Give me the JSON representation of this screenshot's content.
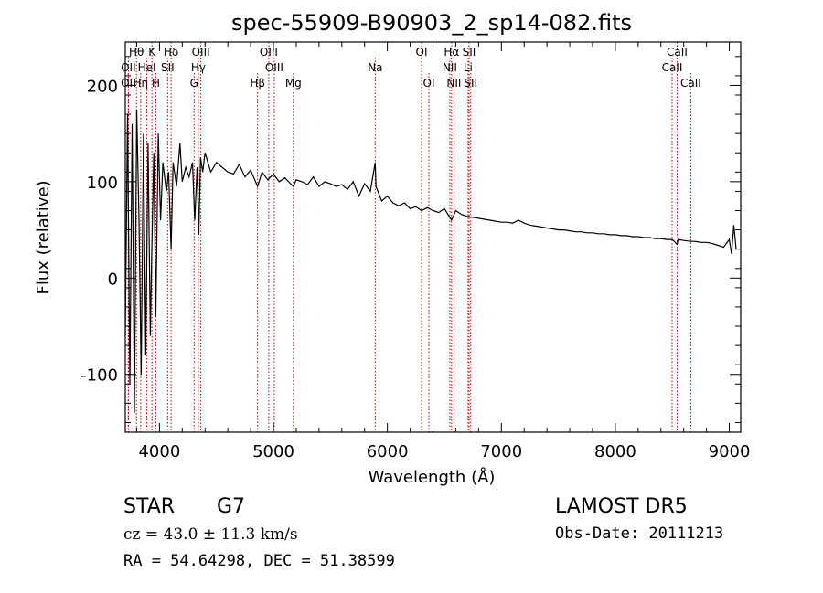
{
  "chart_data": {
    "type": "line",
    "title": "spec-55909-B90903_2_sp14-082.fits",
    "xlabel": "Wavelength (Å)",
    "ylabel": "Flux (relative)",
    "xlim": [
      3700,
      9100
    ],
    "ylim": [
      -160,
      245
    ],
    "x_ticks": [
      4000,
      5000,
      6000,
      7000,
      8000,
      9000
    ],
    "y_ticks": [
      -100,
      0,
      100,
      200
    ],
    "grid": false,
    "legend": "none",
    "line_color": "#000000",
    "marker_color": "#c00000",
    "spectrum": {
      "x": [
        3700,
        3720,
        3740,
        3760,
        3780,
        3800,
        3820,
        3840,
        3860,
        3880,
        3900,
        3920,
        3933,
        3950,
        3968,
        3990,
        4010,
        4030,
        4060,
        4080,
        4102,
        4120,
        4150,
        4180,
        4200,
        4230,
        4260,
        4290,
        4310,
        4330,
        4345,
        4360,
        4380,
        4400,
        4450,
        4500,
        4550,
        4600,
        4650,
        4700,
        4750,
        4800,
        4861,
        4900,
        4950,
        5000,
        5050,
        5100,
        5150,
        5175,
        5200,
        5250,
        5300,
        5350,
        5400,
        5450,
        5500,
        5550,
        5600,
        5650,
        5700,
        5750,
        5800,
        5850,
        5893,
        5900,
        5950,
        6000,
        6050,
        6100,
        6150,
        6200,
        6250,
        6300,
        6350,
        6400,
        6450,
        6500,
        6563,
        6600,
        6650,
        6700,
        6750,
        6800,
        6850,
        6900,
        6950,
        7000,
        7050,
        7100,
        7150,
        7200,
        7250,
        7300,
        7350,
        7400,
        7450,
        7500,
        7550,
        7600,
        7650,
        7700,
        7750,
        7800,
        7850,
        7900,
        7950,
        8000,
        8050,
        8100,
        8150,
        8200,
        8250,
        8300,
        8350,
        8400,
        8450,
        8500,
        8542,
        8550,
        8600,
        8662,
        8700,
        8750,
        8800,
        8850,
        8900,
        8950,
        9000,
        9020,
        9040,
        9060
      ],
      "y": [
        -60,
        170,
        -110,
        160,
        -140,
        175,
        60,
        -100,
        150,
        -80,
        140,
        -60,
        30,
        130,
        -40,
        150,
        60,
        120,
        90,
        110,
        30,
        120,
        95,
        140,
        100,
        115,
        105,
        120,
        60,
        115,
        45,
        125,
        110,
        130,
        110,
        120,
        115,
        110,
        108,
        118,
        105,
        112,
        95,
        110,
        102,
        108,
        100,
        104,
        98,
        95,
        102,
        100,
        97,
        105,
        95,
        100,
        98,
        95,
        97,
        92,
        100,
        85,
        98,
        90,
        120,
        95,
        80,
        85,
        78,
        75,
        78,
        72,
        74,
        70,
        73,
        70,
        68,
        72,
        60,
        70,
        66,
        64,
        63,
        62,
        61,
        60,
        59,
        58,
        58,
        57,
        60,
        57,
        55,
        54,
        53,
        52,
        51,
        50,
        50,
        49,
        48,
        48,
        47,
        47,
        46,
        46,
        45,
        45,
        44,
        44,
        43,
        43,
        42,
        42,
        41,
        41,
        40,
        40,
        35,
        40,
        39,
        38,
        38,
        37,
        37,
        36,
        34,
        32,
        40,
        25,
        55,
        30
      ]
    },
    "line_markers": [
      {
        "label": "Hθ",
        "x": 3798,
        "row": 1
      },
      {
        "label": "OII",
        "x": 3727,
        "row": 2
      },
      {
        "label": "OII",
        "x": 3727,
        "row": 3
      },
      {
        "label": "Hη",
        "x": 3835,
        "row": 3
      },
      {
        "label": "K",
        "x": 3934,
        "row": 1
      },
      {
        "label": "HeI",
        "x": 3889,
        "row": 2
      },
      {
        "label": "H",
        "x": 3969,
        "row": 3
      },
      {
        "label": "Hδ",
        "x": 4102,
        "row": 1
      },
      {
        "label": "SII",
        "x": 4072,
        "row": 2
      },
      {
        "label": "OIII",
        "x": 4363,
        "row": 1
      },
      {
        "label": "Hγ",
        "x": 4341,
        "row": 2
      },
      {
        "label": "G",
        "x": 4304,
        "row": 3
      },
      {
        "label": "OIII",
        "x": 4959,
        "row": 1
      },
      {
        "label": "OIII",
        "x": 5007,
        "row": 2
      },
      {
        "label": "Hβ",
        "x": 4861,
        "row": 3
      },
      {
        "label": "Mg",
        "x": 5175,
        "row": 3
      },
      {
        "label": "Na",
        "x": 5893,
        "row": 2
      },
      {
        "label": "OI",
        "x": 6300,
        "row": 1
      },
      {
        "label": "OI",
        "x": 6364,
        "row": 3
      },
      {
        "label": "Hα",
        "x": 6563,
        "row": 1
      },
      {
        "label": "NII",
        "x": 6548,
        "row": 2
      },
      {
        "label": "NII",
        "x": 6584,
        "row": 3
      },
      {
        "label": "SII",
        "x": 6717,
        "row": 1
      },
      {
        "label": "Li",
        "x": 6708,
        "row": 2
      },
      {
        "label": "SII",
        "x": 6731,
        "row": 3
      },
      {
        "label": "CaII",
        "x": 8542,
        "row": 1
      },
      {
        "label": "CaII",
        "x": 8498,
        "row": 2
      },
      {
        "label": "CaII",
        "x": 8662,
        "row": 3
      }
    ]
  },
  "info": {
    "class": "STAR",
    "subclass": "G7",
    "survey": "LAMOST DR5",
    "cz": "cz = 43.0 ± 11.3 km/s",
    "obs_date": "Obs-Date: 20111213",
    "coords": "RA =  54.64298, DEC =  51.38599"
  }
}
